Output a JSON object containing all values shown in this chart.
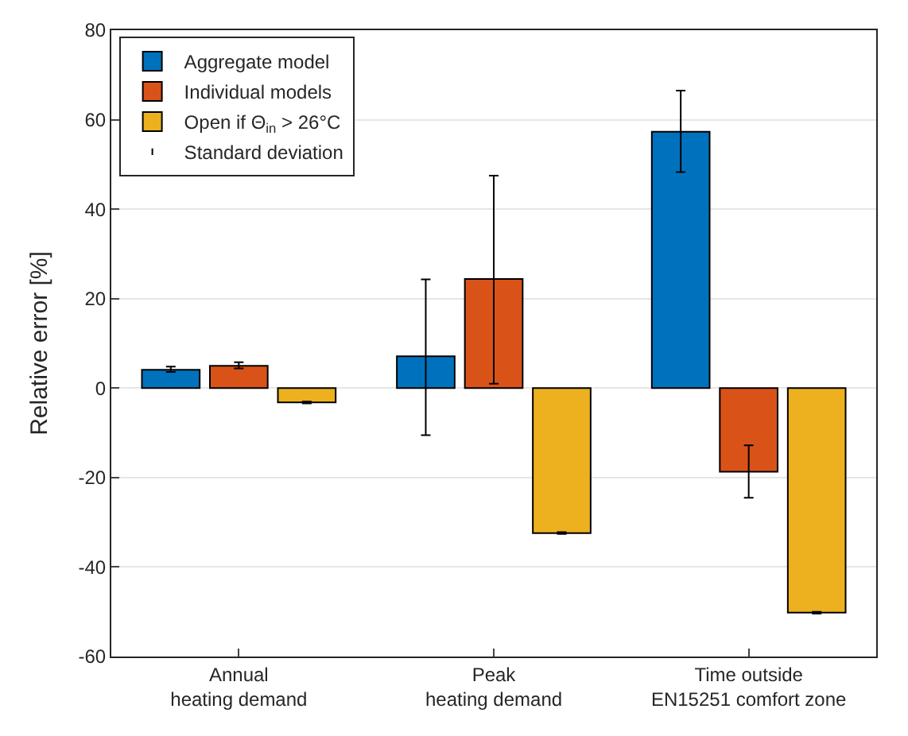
{
  "chart_data": {
    "type": "bar",
    "ylabel": "Relative error [%]",
    "categories": [
      "Annual\nheating demand",
      "Peak\nheating demand",
      "Time outside\nEN15251 comfort zone"
    ],
    "series": [
      {
        "name": "Aggregate model",
        "color": "#0072bd",
        "values": [
          4.1,
          7.1,
          57.3
        ],
        "errors": [
          [
            3.6,
            4.8
          ],
          [
            -10.5,
            24.3
          ],
          [
            48.3,
            66.5
          ]
        ]
      },
      {
        "name": "Individual models",
        "color": "#d95319",
        "values": [
          5.0,
          24.4,
          -18.7
        ],
        "errors": [
          [
            4.4,
            5.8
          ],
          [
            1.0,
            47.5
          ],
          [
            -24.5,
            -12.8
          ]
        ]
      },
      {
        "name": "Open if Θ$_{in}$ > 26°C",
        "color": "#edb120",
        "values": [
          -3.2,
          -32.4,
          -50.2
        ],
        "errors": [
          [
            -3.4,
            -3.0
          ],
          [
            -32.6,
            -32.2
          ],
          [
            -50.4,
            -50.0
          ]
        ]
      }
    ],
    "annotations": [
      "Standard deviation"
    ],
    "ylim": [
      -60,
      80
    ],
    "yticks": [
      -60,
      -40,
      -20,
      0,
      20,
      40,
      60,
      80
    ],
    "grid": "y",
    "legend": "top left"
  }
}
